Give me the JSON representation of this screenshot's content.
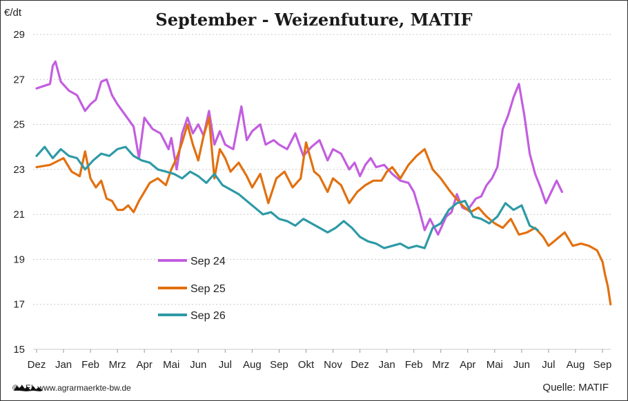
{
  "chart_data": {
    "type": "line",
    "title": "September - Weizenfuture, MATIF",
    "ylabel": "€/dt",
    "ylim": [
      15,
      29
    ],
    "yticks": [
      15,
      17,
      19,
      21,
      23,
      25,
      27,
      29
    ],
    "xticks": [
      "Dez",
      "Jan",
      "Feb",
      "Mrz",
      "Apr",
      "Mai",
      "Jun",
      "Jul",
      "Aug",
      "Sep",
      "Okt",
      "Nov",
      "Dez",
      "Jan",
      "Feb",
      "Mrz",
      "Apr",
      "Mai",
      "Jun",
      "Jul",
      "Aug",
      "Sep"
    ],
    "x_unit": "month index (0 = Dez, 21 = Sep)",
    "grid": "horizontal dotted",
    "legend_position": "center-left",
    "series": [
      {
        "name": "Sep 24",
        "color": "#c25ee0",
        "points": [
          [
            0,
            26.6
          ],
          [
            0.5,
            26.8
          ],
          [
            0.6,
            27.6
          ],
          [
            0.7,
            27.8
          ],
          [
            0.9,
            26.9
          ],
          [
            1.2,
            26.5
          ],
          [
            1.5,
            26.3
          ],
          [
            1.8,
            25.6
          ],
          [
            2.0,
            25.9
          ],
          [
            2.2,
            26.1
          ],
          [
            2.4,
            26.9
          ],
          [
            2.6,
            27.0
          ],
          [
            2.8,
            26.3
          ],
          [
            3.0,
            25.9
          ],
          [
            3.3,
            25.4
          ],
          [
            3.6,
            24.9
          ],
          [
            3.8,
            23.5
          ],
          [
            4.0,
            25.3
          ],
          [
            4.3,
            24.8
          ],
          [
            4.6,
            24.6
          ],
          [
            4.9,
            23.9
          ],
          [
            5.0,
            24.4
          ],
          [
            5.2,
            23.0
          ],
          [
            5.4,
            24.6
          ],
          [
            5.6,
            25.3
          ],
          [
            5.8,
            24.6
          ],
          [
            6.0,
            25.0
          ],
          [
            6.2,
            24.5
          ],
          [
            6.4,
            25.6
          ],
          [
            6.6,
            24.1
          ],
          [
            6.8,
            24.7
          ],
          [
            7.0,
            24.1
          ],
          [
            7.3,
            23.9
          ],
          [
            7.6,
            25.8
          ],
          [
            7.8,
            24.3
          ],
          [
            8.0,
            24.7
          ],
          [
            8.3,
            25.0
          ],
          [
            8.5,
            24.1
          ],
          [
            8.8,
            24.3
          ],
          [
            9.0,
            24.1
          ],
          [
            9.3,
            23.9
          ],
          [
            9.6,
            24.6
          ],
          [
            9.9,
            23.6
          ],
          [
            10.2,
            24.0
          ],
          [
            10.5,
            24.3
          ],
          [
            10.8,
            23.4
          ],
          [
            11.0,
            23.9
          ],
          [
            11.3,
            23.7
          ],
          [
            11.6,
            23.0
          ],
          [
            11.8,
            23.3
          ],
          [
            12.0,
            22.7
          ],
          [
            12.2,
            23.2
          ],
          [
            12.4,
            23.5
          ],
          [
            12.6,
            23.1
          ],
          [
            12.9,
            23.2
          ],
          [
            13.2,
            22.8
          ],
          [
            13.5,
            22.5
          ],
          [
            13.8,
            22.4
          ],
          [
            14.0,
            22.0
          ],
          [
            14.2,
            21.2
          ],
          [
            14.4,
            20.3
          ],
          [
            14.6,
            20.8
          ],
          [
            14.9,
            20.1
          ],
          [
            15.2,
            20.9
          ],
          [
            15.4,
            21.1
          ],
          [
            15.6,
            21.9
          ],
          [
            15.8,
            21.3
          ],
          [
            16.0,
            21.2
          ],
          [
            16.3,
            21.7
          ],
          [
            16.5,
            21.8
          ],
          [
            16.7,
            22.3
          ],
          [
            16.9,
            22.6
          ],
          [
            17.1,
            23.1
          ],
          [
            17.3,
            24.8
          ],
          [
            17.5,
            25.4
          ],
          [
            17.7,
            26.2
          ],
          [
            17.9,
            26.8
          ],
          [
            18.1,
            25.4
          ],
          [
            18.3,
            23.7
          ],
          [
            18.5,
            22.8
          ],
          [
            18.7,
            22.2
          ],
          [
            18.9,
            21.5
          ],
          [
            19.1,
            22.0
          ],
          [
            19.3,
            22.5
          ],
          [
            19.5,
            22.0
          ]
        ]
      },
      {
        "name": "Sep 25",
        "color": "#e2700f",
        "points": [
          [
            0,
            23.1
          ],
          [
            0.5,
            23.2
          ],
          [
            1.0,
            23.5
          ],
          [
            1.3,
            22.9
          ],
          [
            1.6,
            22.7
          ],
          [
            1.8,
            23.8
          ],
          [
            2.0,
            22.6
          ],
          [
            2.2,
            22.2
          ],
          [
            2.4,
            22.5
          ],
          [
            2.6,
            21.7
          ],
          [
            2.8,
            21.6
          ],
          [
            3.0,
            21.2
          ],
          [
            3.2,
            21.2
          ],
          [
            3.4,
            21.4
          ],
          [
            3.6,
            21.1
          ],
          [
            3.8,
            21.6
          ],
          [
            4.0,
            22.0
          ],
          [
            4.2,
            22.4
          ],
          [
            4.5,
            22.6
          ],
          [
            4.8,
            22.3
          ],
          [
            5.0,
            23.0
          ],
          [
            5.2,
            23.5
          ],
          [
            5.4,
            24.2
          ],
          [
            5.6,
            25.0
          ],
          [
            5.8,
            24.1
          ],
          [
            6.0,
            23.4
          ],
          [
            6.2,
            24.5
          ],
          [
            6.4,
            25.3
          ],
          [
            6.6,
            22.6
          ],
          [
            6.8,
            23.9
          ],
          [
            7.0,
            23.5
          ],
          [
            7.2,
            22.9
          ],
          [
            7.5,
            23.3
          ],
          [
            7.8,
            22.7
          ],
          [
            8.0,
            22.2
          ],
          [
            8.3,
            22.8
          ],
          [
            8.6,
            21.5
          ],
          [
            8.9,
            22.6
          ],
          [
            9.2,
            22.9
          ],
          [
            9.5,
            22.2
          ],
          [
            9.8,
            22.6
          ],
          [
            10.0,
            24.2
          ],
          [
            10.3,
            22.9
          ],
          [
            10.5,
            22.7
          ],
          [
            10.8,
            22.0
          ],
          [
            11.0,
            22.6
          ],
          [
            11.3,
            22.3
          ],
          [
            11.6,
            21.5
          ],
          [
            11.9,
            22.0
          ],
          [
            12.2,
            22.3
          ],
          [
            12.5,
            22.5
          ],
          [
            12.8,
            22.5
          ],
          [
            13.0,
            22.9
          ],
          [
            13.2,
            23.1
          ],
          [
            13.5,
            22.6
          ],
          [
            13.8,
            23.2
          ],
          [
            14.1,
            23.6
          ],
          [
            14.4,
            23.9
          ],
          [
            14.7,
            23.0
          ],
          [
            15.0,
            22.6
          ],
          [
            15.3,
            22.1
          ],
          [
            15.5,
            21.8
          ],
          [
            15.8,
            21.4
          ],
          [
            16.1,
            21.1
          ],
          [
            16.4,
            21.3
          ],
          [
            16.7,
            20.9
          ],
          [
            17.0,
            20.6
          ],
          [
            17.3,
            20.4
          ],
          [
            17.6,
            20.8
          ],
          [
            17.9,
            20.1
          ],
          [
            18.2,
            20.2
          ],
          [
            18.5,
            20.4
          ],
          [
            18.8,
            20.0
          ],
          [
            19.0,
            19.6
          ],
          [
            19.3,
            19.9
          ],
          [
            19.6,
            20.2
          ],
          [
            19.9,
            19.6
          ],
          [
            20.2,
            19.7
          ],
          [
            20.5,
            19.6
          ],
          [
            20.8,
            19.4
          ],
          [
            21.0,
            18.9
          ],
          [
            21.1,
            18.3
          ],
          [
            21.2,
            17.8
          ],
          [
            21.3,
            17.0
          ]
        ]
      },
      {
        "name": "Sep 26",
        "color": "#2e9aa6",
        "points": [
          [
            0,
            23.6
          ],
          [
            0.3,
            24.0
          ],
          [
            0.6,
            23.5
          ],
          [
            0.9,
            23.9
          ],
          [
            1.2,
            23.6
          ],
          [
            1.5,
            23.5
          ],
          [
            1.8,
            23.0
          ],
          [
            2.1,
            23.4
          ],
          [
            2.4,
            23.7
          ],
          [
            2.7,
            23.6
          ],
          [
            3.0,
            23.9
          ],
          [
            3.3,
            24.0
          ],
          [
            3.6,
            23.6
          ],
          [
            3.9,
            23.4
          ],
          [
            4.2,
            23.3
          ],
          [
            4.5,
            23.0
          ],
          [
            4.8,
            22.9
          ],
          [
            5.1,
            22.8
          ],
          [
            5.4,
            22.6
          ],
          [
            5.7,
            22.9
          ],
          [
            6.0,
            22.7
          ],
          [
            6.3,
            22.4
          ],
          [
            6.6,
            22.8
          ],
          [
            6.9,
            22.3
          ],
          [
            7.2,
            22.1
          ],
          [
            7.5,
            21.9
          ],
          [
            7.8,
            21.6
          ],
          [
            8.1,
            21.3
          ],
          [
            8.4,
            21.0
          ],
          [
            8.7,
            21.1
          ],
          [
            9.0,
            20.8
          ],
          [
            9.3,
            20.7
          ],
          [
            9.6,
            20.5
          ],
          [
            9.9,
            20.8
          ],
          [
            10.2,
            20.6
          ],
          [
            10.5,
            20.4
          ],
          [
            10.8,
            20.2
          ],
          [
            11.1,
            20.4
          ],
          [
            11.4,
            20.7
          ],
          [
            11.7,
            20.4
          ],
          [
            12.0,
            20.0
          ],
          [
            12.3,
            19.8
          ],
          [
            12.6,
            19.7
          ],
          [
            12.9,
            19.5
          ],
          [
            13.2,
            19.6
          ],
          [
            13.5,
            19.7
          ],
          [
            13.8,
            19.5
          ],
          [
            14.1,
            19.6
          ],
          [
            14.4,
            19.5
          ],
          [
            14.7,
            20.4
          ],
          [
            15.0,
            20.6
          ],
          [
            15.3,
            21.2
          ],
          [
            15.6,
            21.5
          ],
          [
            15.9,
            21.6
          ],
          [
            16.2,
            20.9
          ],
          [
            16.5,
            20.8
          ],
          [
            16.8,
            20.6
          ],
          [
            17.1,
            20.9
          ],
          [
            17.4,
            21.5
          ],
          [
            17.7,
            21.2
          ],
          [
            18.0,
            21.4
          ],
          [
            18.3,
            20.5
          ],
          [
            18.6,
            20.3
          ]
        ]
      }
    ]
  },
  "footer": {
    "copyright": "© LEL www.agrarmaerkte-bw.de",
    "source": "Quelle:  MATIF"
  }
}
